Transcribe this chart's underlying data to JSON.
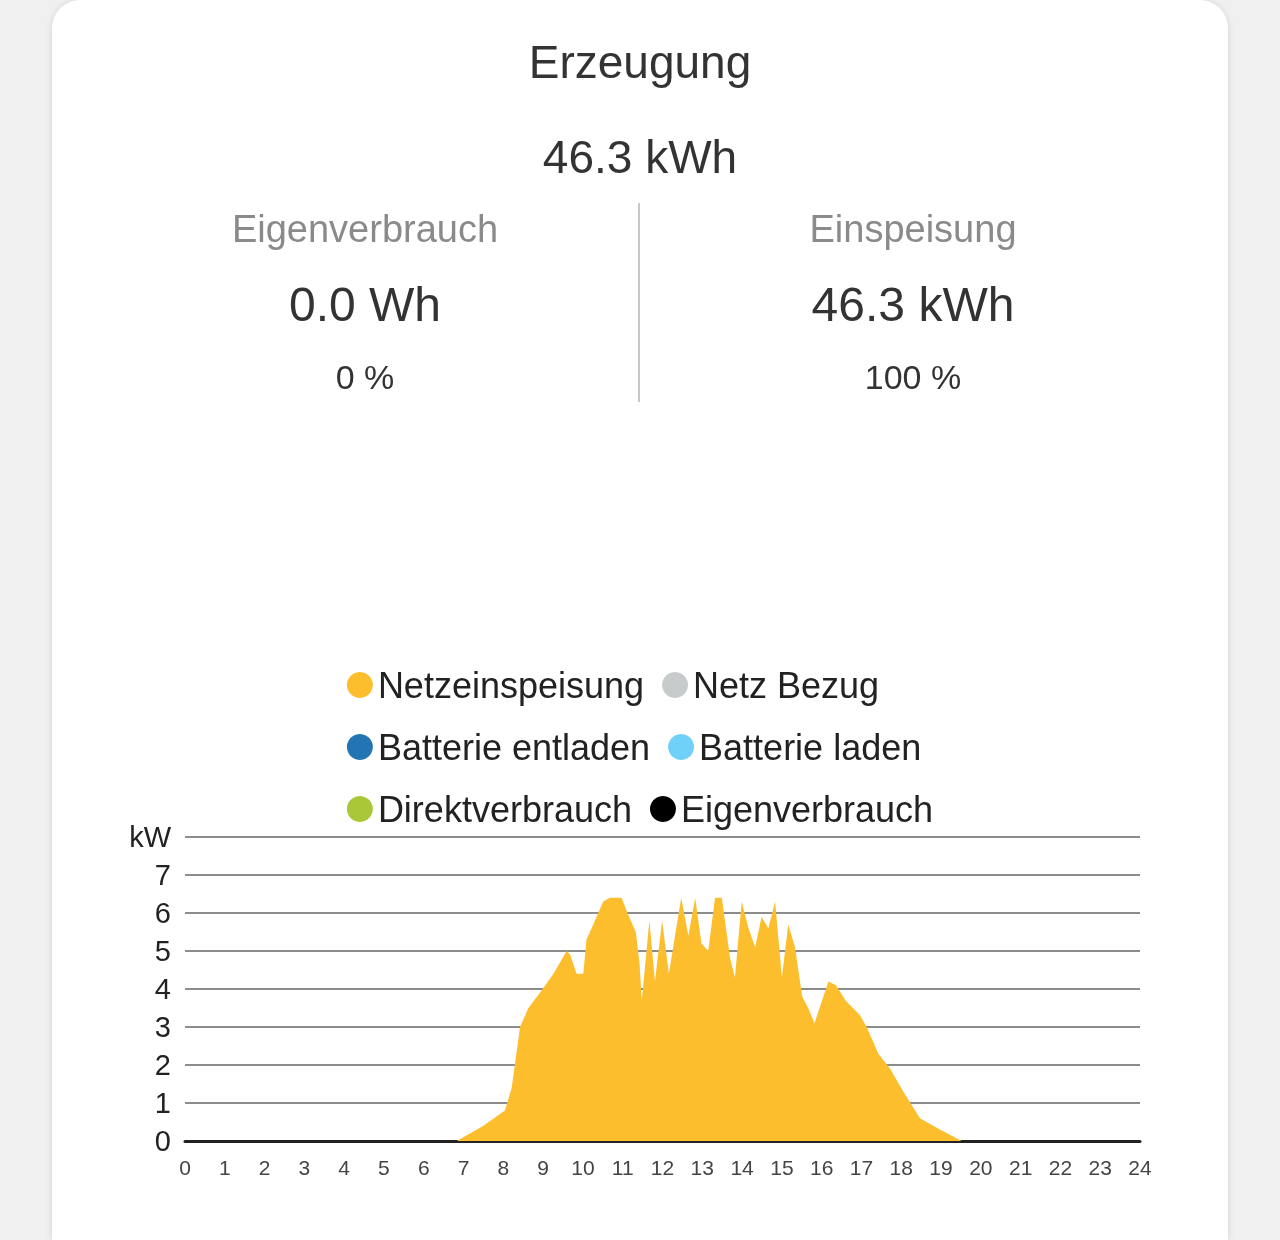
{
  "chart_data": {
    "type": "area",
    "title": "Erzeugung",
    "subtitle": "46.3 kWh",
    "annotations": [
      "Eigenverbrauch",
      "0.0 Wh",
      "0 %",
      "Einspeisung",
      "46.3 kWh",
      "100 %"
    ],
    "x": [
      0,
      6.83,
      7.5,
      8.04,
      8.21,
      8.42,
      8.63,
      8.92,
      9.26,
      9.59,
      9.68,
      9.84,
      10.01,
      10.09,
      10.26,
      10.51,
      10.68,
      10.97,
      11.12,
      11.33,
      11.42,
      11.48,
      11.67,
      11.81,
      11.99,
      12.16,
      12.47,
      12.65,
      12.82,
      12.98,
      13.15,
      13.32,
      13.49,
      13.7,
      13.82,
      13.99,
      14.16,
      14.33,
      14.49,
      14.66,
      14.83,
      15.0,
      15.16,
      15.33,
      15.51,
      15.66,
      15.82,
      16.17,
      16.36,
      16.6,
      16.97,
      17.13,
      17.3,
      17.42,
      17.72,
      18.05,
      18.47,
      18.97,
      19.52,
      24
    ],
    "series": [
      {
        "name": "Netzeinspeisung",
        "color": "#fdbe2e",
        "values": [
          0,
          0,
          0.4,
          0.8,
          1.4,
          3.0,
          3.5,
          3.9,
          4.4,
          5.0,
          4.9,
          4.4,
          4.4,
          5.3,
          5.7,
          6.3,
          6.4,
          6.4,
          6.0,
          5.5,
          4.7,
          3.7,
          5.8,
          4.2,
          5.8,
          4.4,
          6.4,
          5.4,
          6.4,
          5.2,
          5.0,
          6.4,
          6.4,
          4.8,
          4.3,
          6.3,
          5.6,
          5.1,
          5.9,
          5.6,
          6.3,
          4.3,
          5.7,
          5.1,
          3.8,
          3.5,
          3.1,
          4.2,
          4.1,
          3.7,
          3.3,
          3.0,
          2.6,
          2.3,
          1.9,
          1.3,
          0.6,
          0.3,
          0,
          0
        ]
      },
      {
        "name": "Netz Bezug",
        "color": "#c8cbcb",
        "values": [
          null,
          null,
          null,
          null,
          null,
          null,
          null,
          null,
          null,
          null,
          null,
          null,
          null,
          null,
          null,
          null,
          null,
          null,
          null,
          null,
          null,
          null,
          null,
          null,
          null,
          null,
          null,
          null,
          null,
          null,
          null,
          null,
          null,
          null,
          null,
          null,
          null,
          null,
          null,
          null,
          null,
          null,
          null,
          null,
          null,
          null,
          null,
          null,
          null,
          null,
          null,
          null,
          null,
          null,
          null,
          null,
          null,
          null,
          null,
          null
        ]
      },
      {
        "name": "Batterie entladen",
        "color": "#2274b3",
        "values": [
          null,
          null,
          null,
          null,
          null,
          null,
          null,
          null,
          null,
          null,
          null,
          null,
          null,
          null,
          null,
          null,
          null,
          null,
          null,
          null,
          null,
          null,
          null,
          null,
          null,
          null,
          null,
          null,
          null,
          null,
          null,
          null,
          null,
          null,
          null,
          null,
          null,
          null,
          null,
          null,
          null,
          null,
          null,
          null,
          null,
          null,
          null,
          null,
          null,
          null,
          null,
          null,
          null,
          null,
          null,
          null,
          null,
          null,
          null,
          null
        ]
      },
      {
        "name": "Batterie laden",
        "color": "#6fd1f8",
        "values": [
          null,
          null,
          null,
          null,
          null,
          null,
          null,
          null,
          null,
          null,
          null,
          null,
          null,
          null,
          null,
          null,
          null,
          null,
          null,
          null,
          null,
          null,
          null,
          null,
          null,
          null,
          null,
          null,
          null,
          null,
          null,
          null,
          null,
          null,
          null,
          null,
          null,
          null,
          null,
          null,
          null,
          null,
          null,
          null,
          null,
          null,
          null,
          null,
          null,
          null,
          null,
          null,
          null,
          null,
          null,
          null,
          null,
          null,
          null,
          null
        ]
      },
      {
        "name": "Direktverbrauch",
        "color": "#a9c736",
        "values": [
          null,
          null,
          null,
          null,
          null,
          null,
          null,
          null,
          null,
          null,
          null,
          null,
          null,
          null,
          null,
          null,
          null,
          null,
          null,
          null,
          null,
          null,
          null,
          null,
          null,
          null,
          null,
          null,
          null,
          null,
          null,
          null,
          null,
          null,
          null,
          null,
          null,
          null,
          null,
          null,
          null,
          null,
          null,
          null,
          null,
          null,
          null,
          null,
          null,
          null,
          null,
          null,
          null,
          null,
          null,
          null,
          null,
          null,
          null,
          null
        ]
      },
      {
        "name": "Eigenverbrauch",
        "color": "#000000",
        "values": [
          null,
          null,
          null,
          null,
          null,
          null,
          null,
          null,
          null,
          null,
          null,
          null,
          null,
          null,
          null,
          null,
          null,
          null,
          null,
          null,
          null,
          null,
          null,
          null,
          null,
          null,
          null,
          null,
          null,
          null,
          null,
          null,
          null,
          null,
          null,
          null,
          null,
          null,
          null,
          null,
          null,
          null,
          null,
          null,
          null,
          null,
          null,
          null,
          null,
          null,
          null,
          null,
          null,
          null,
          null,
          null,
          null,
          null,
          null,
          null
        ]
      }
    ],
    "xlim": [
      0,
      24
    ],
    "xticks": [
      0,
      1,
      2,
      3,
      4,
      5,
      6,
      7,
      8,
      9,
      10,
      11,
      12,
      13,
      14,
      15,
      16,
      17,
      18,
      19,
      20,
      21,
      22,
      23,
      24
    ],
    "ylim": [
      0,
      8
    ],
    "yticks": [
      0,
      1,
      2,
      3,
      4,
      5,
      6,
      7,
      {
        "value": 8,
        "label": "kW"
      }
    ],
    "grid": "y",
    "legend": "top",
    "marker": "none"
  }
}
